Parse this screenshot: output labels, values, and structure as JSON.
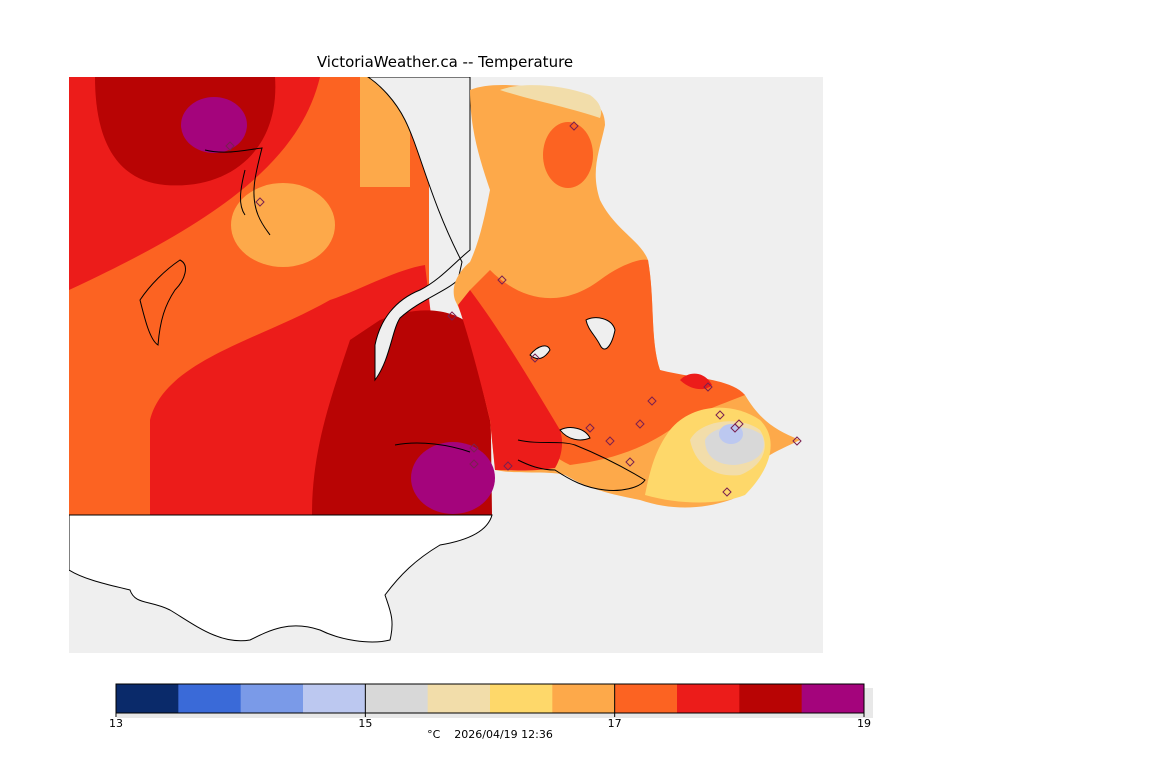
{
  "title": "VictoriaWeather.ca -- Temperature",
  "colorbar": {
    "min": 13,
    "max": 19,
    "ticks": [
      "13",
      "15",
      "17",
      "19"
    ],
    "tick_values": [
      13,
      15,
      17,
      19
    ],
    "colors": [
      "#0a2a6a",
      "#3a6ad8",
      "#7a9ae8",
      "#bcc8f0",
      "#d8d8d8",
      "#f2ddaa",
      "#fed86a",
      "#fda94a",
      "#fc6322",
      "#ec1c1a",
      "#b80404",
      "#a4047c"
    ]
  },
  "footer": {
    "unit": "°C",
    "timestamp": "2026/04/19 12:36"
  }
}
